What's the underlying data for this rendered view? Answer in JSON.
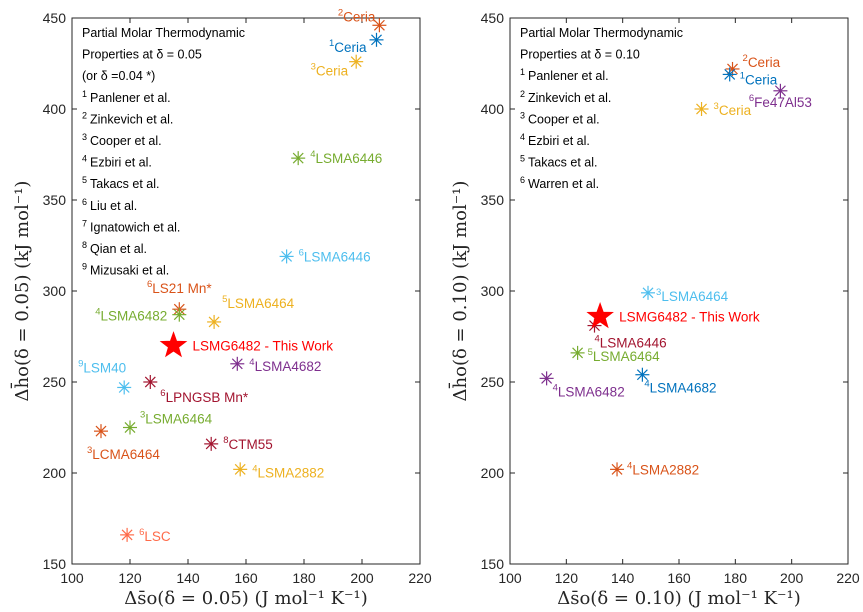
{
  "chart_data": [
    {
      "type": "scatter",
      "xlabel": "Δs̄o(δ = 0.05) (J mol⁻¹ K⁻¹)",
      "ylabel": "Δh̄o(δ = 0.05) (kJ mol⁻¹)",
      "xlim": [
        100,
        220
      ],
      "ylim": [
        150,
        450
      ],
      "xticks": [
        100,
        120,
        140,
        160,
        180,
        200,
        220
      ],
      "yticks": [
        150,
        200,
        250,
        300,
        350,
        400,
        450
      ],
      "grid": false,
      "legend_placement": "top-left",
      "legend_lines": [
        {
          "sup": "",
          "text": "Partial Molar Thermodynamic"
        },
        {
          "sup": "",
          "text": "Properties at δ = 0.05"
        },
        {
          "sup": "",
          "text": "(or δ =0.04 *)"
        },
        {
          "sup": "1",
          "text": "Panlener et al."
        },
        {
          "sup": "2",
          "text": "Zinkevich et al."
        },
        {
          "sup": "3",
          "text": "Cooper et al."
        },
        {
          "sup": "4",
          "text": "Ezbiri et al."
        },
        {
          "sup": "5",
          "text": "Takacs et al."
        },
        {
          "sup": "6",
          "text": "Liu et al."
        },
        {
          "sup": "7",
          "text": "Ignatowich et al."
        },
        {
          "sup": "8",
          "text": "Qian et al."
        },
        {
          "sup": "9",
          "text": "Mizusaki et al."
        }
      ],
      "points": [
        {
          "x": 206,
          "y": 446,
          "color": "#d95319",
          "sup": "2",
          "label": "Ceria",
          "anchor": "end",
          "dx": -4,
          "dy": -4
        },
        {
          "x": 205,
          "y": 438,
          "color": "#0072bd",
          "sup": "1",
          "label": "Ceria",
          "anchor": "end",
          "dx": -10,
          "dy": 12
        },
        {
          "x": 198,
          "y": 426,
          "color": "#edb120",
          "sup": "3",
          "label": "Ceria",
          "anchor": "end",
          "dx": -8,
          "dy": 14
        },
        {
          "x": 178,
          "y": 373,
          "color": "#77ac30",
          "sup": "4",
          "label": "LSMA6446",
          "anchor": "start",
          "dx": 12,
          "dy": 5
        },
        {
          "x": 174,
          "y": 319,
          "color": "#4dbeee",
          "sup": "6",
          "label": "LSMA6446",
          "anchor": "start",
          "dx": 12,
          "dy": 5
        },
        {
          "x": 137,
          "y": 290,
          "color": "#d95319",
          "sup": "6",
          "label": "LS21 Mn*",
          "anchor": "middle",
          "dx": 0,
          "dy": -16
        },
        {
          "x": 137,
          "y": 287,
          "color": "#77ac30",
          "sup": "4",
          "label": "LSMA6482",
          "anchor": "end",
          "dx": -12,
          "dy": 6
        },
        {
          "x": 149,
          "y": 283,
          "color": "#edb120",
          "sup": "5",
          "label": "LSMA6464",
          "anchor": "start",
          "dx": 8,
          "dy": -14
        },
        {
          "x": 157,
          "y": 260,
          "color": "#7e2f8e",
          "sup": "4",
          "label": "LSMA4682",
          "anchor": "start",
          "dx": 12,
          "dy": 7
        },
        {
          "x": 118,
          "y": 247,
          "color": "#4dbeee",
          "sup": "9",
          "label": "LSM40",
          "anchor": "end",
          "dx": 2,
          "dy": -15
        },
        {
          "x": 127,
          "y": 250,
          "color": "#a2142f",
          "sup": "6",
          "label": "LPNGSB Mn*",
          "anchor": "start",
          "dx": 10,
          "dy": 20
        },
        {
          "x": 110,
          "y": 223,
          "color": "#d95319",
          "sup": "3",
          "label": "LCMA6464",
          "anchor": "start",
          "dx": -14,
          "dy": 28
        },
        {
          "x": 120,
          "y": 225,
          "color": "#77ac30",
          "sup": "3",
          "label": "LSMA6464",
          "anchor": "start",
          "dx": 10,
          "dy": -4
        },
        {
          "x": 148,
          "y": 216,
          "color": "#a2142f",
          "sup": "8",
          "label": "CTM55",
          "anchor": "start",
          "dx": 12,
          "dy": 5
        },
        {
          "x": 158,
          "y": 202,
          "color": "#edb120",
          "sup": "4",
          "label": "LSMA2882",
          "anchor": "start",
          "dx": 12,
          "dy": 8
        },
        {
          "x": 119,
          "y": 166,
          "color": "#ff6b4a",
          "sup": "6",
          "label": "LSC",
          "anchor": "start",
          "dx": 12,
          "dy": 6
        }
      ],
      "highlight": {
        "x": 135,
        "y": 270,
        "color": "#ff0000",
        "label": "LSMG6482 - This Work"
      }
    },
    {
      "type": "scatter",
      "xlabel": "Δs̄o(δ = 0.10) (J mol⁻¹ K⁻¹)",
      "ylabel": "Δh̄o(δ = 0.10) (kJ mol⁻¹)",
      "xlim": [
        100,
        220
      ],
      "ylim": [
        150,
        450
      ],
      "xticks": [
        100,
        120,
        140,
        160,
        180,
        200,
        220
      ],
      "yticks": [
        150,
        200,
        250,
        300,
        350,
        400,
        450
      ],
      "grid": false,
      "legend_placement": "top-left",
      "legend_lines": [
        {
          "sup": "",
          "text": "Partial Molar Thermodynamic"
        },
        {
          "sup": "",
          "text": "Properties at δ = 0.10"
        },
        {
          "sup": "1",
          "text": "Panlener et al."
        },
        {
          "sup": "2",
          "text": "Zinkevich et al."
        },
        {
          "sup": "3",
          "text": "Cooper et al."
        },
        {
          "sup": "4",
          "text": "Ezbiri et al."
        },
        {
          "sup": "5",
          "text": "Takacs et al."
        },
        {
          "sup": "6",
          "text": "Warren et al."
        }
      ],
      "points": [
        {
          "x": 179,
          "y": 422,
          "color": "#d95319",
          "sup": "2",
          "label": "Ceria",
          "anchor": "start",
          "dx": 10,
          "dy": -2
        },
        {
          "x": 178,
          "y": 419,
          "color": "#0072bd",
          "sup": "1",
          "label": "Ceria",
          "anchor": "start",
          "dx": 10,
          "dy": 10
        },
        {
          "x": 196,
          "y": 410,
          "color": "#7e2f8e",
          "sup": "6",
          "label": "Fe47Al53",
          "anchor": "middle",
          "dx": 0,
          "dy": 16
        },
        {
          "x": 168,
          "y": 400,
          "color": "#edb120",
          "sup": "3",
          "label": "Ceria",
          "anchor": "start",
          "dx": 12,
          "dy": 6
        },
        {
          "x": 149,
          "y": 299,
          "color": "#4dbeee",
          "sup": "3",
          "label": "LSMA6464",
          "anchor": "start",
          "dx": 8,
          "dy": 8
        },
        {
          "x": 130,
          "y": 281,
          "color": "#a2142f",
          "sup": "4",
          "label": "LSMA6446",
          "anchor": "start",
          "dx": 0,
          "dy": 22
        },
        {
          "x": 124,
          "y": 266,
          "color": "#77ac30",
          "sup": "5",
          "label": "LSMA6464",
          "anchor": "start",
          "dx": 10,
          "dy": 8
        },
        {
          "x": 147,
          "y": 254,
          "color": "#0072bd",
          "sup": "4",
          "label": "LSMA4682",
          "anchor": "start",
          "dx": 2,
          "dy": 18
        },
        {
          "x": 113,
          "y": 252,
          "color": "#7e2f8e",
          "sup": "4",
          "label": "LSMA6482",
          "anchor": "start",
          "dx": 6,
          "dy": 18
        },
        {
          "x": 138,
          "y": 202,
          "color": "#d95319",
          "sup": "4",
          "label": "LSMA2882",
          "anchor": "start",
          "dx": 10,
          "dy": 5
        }
      ],
      "highlight": {
        "x": 132,
        "y": 286,
        "color": "#ff0000",
        "label": "LSMG6482 - This Work"
      }
    }
  ]
}
